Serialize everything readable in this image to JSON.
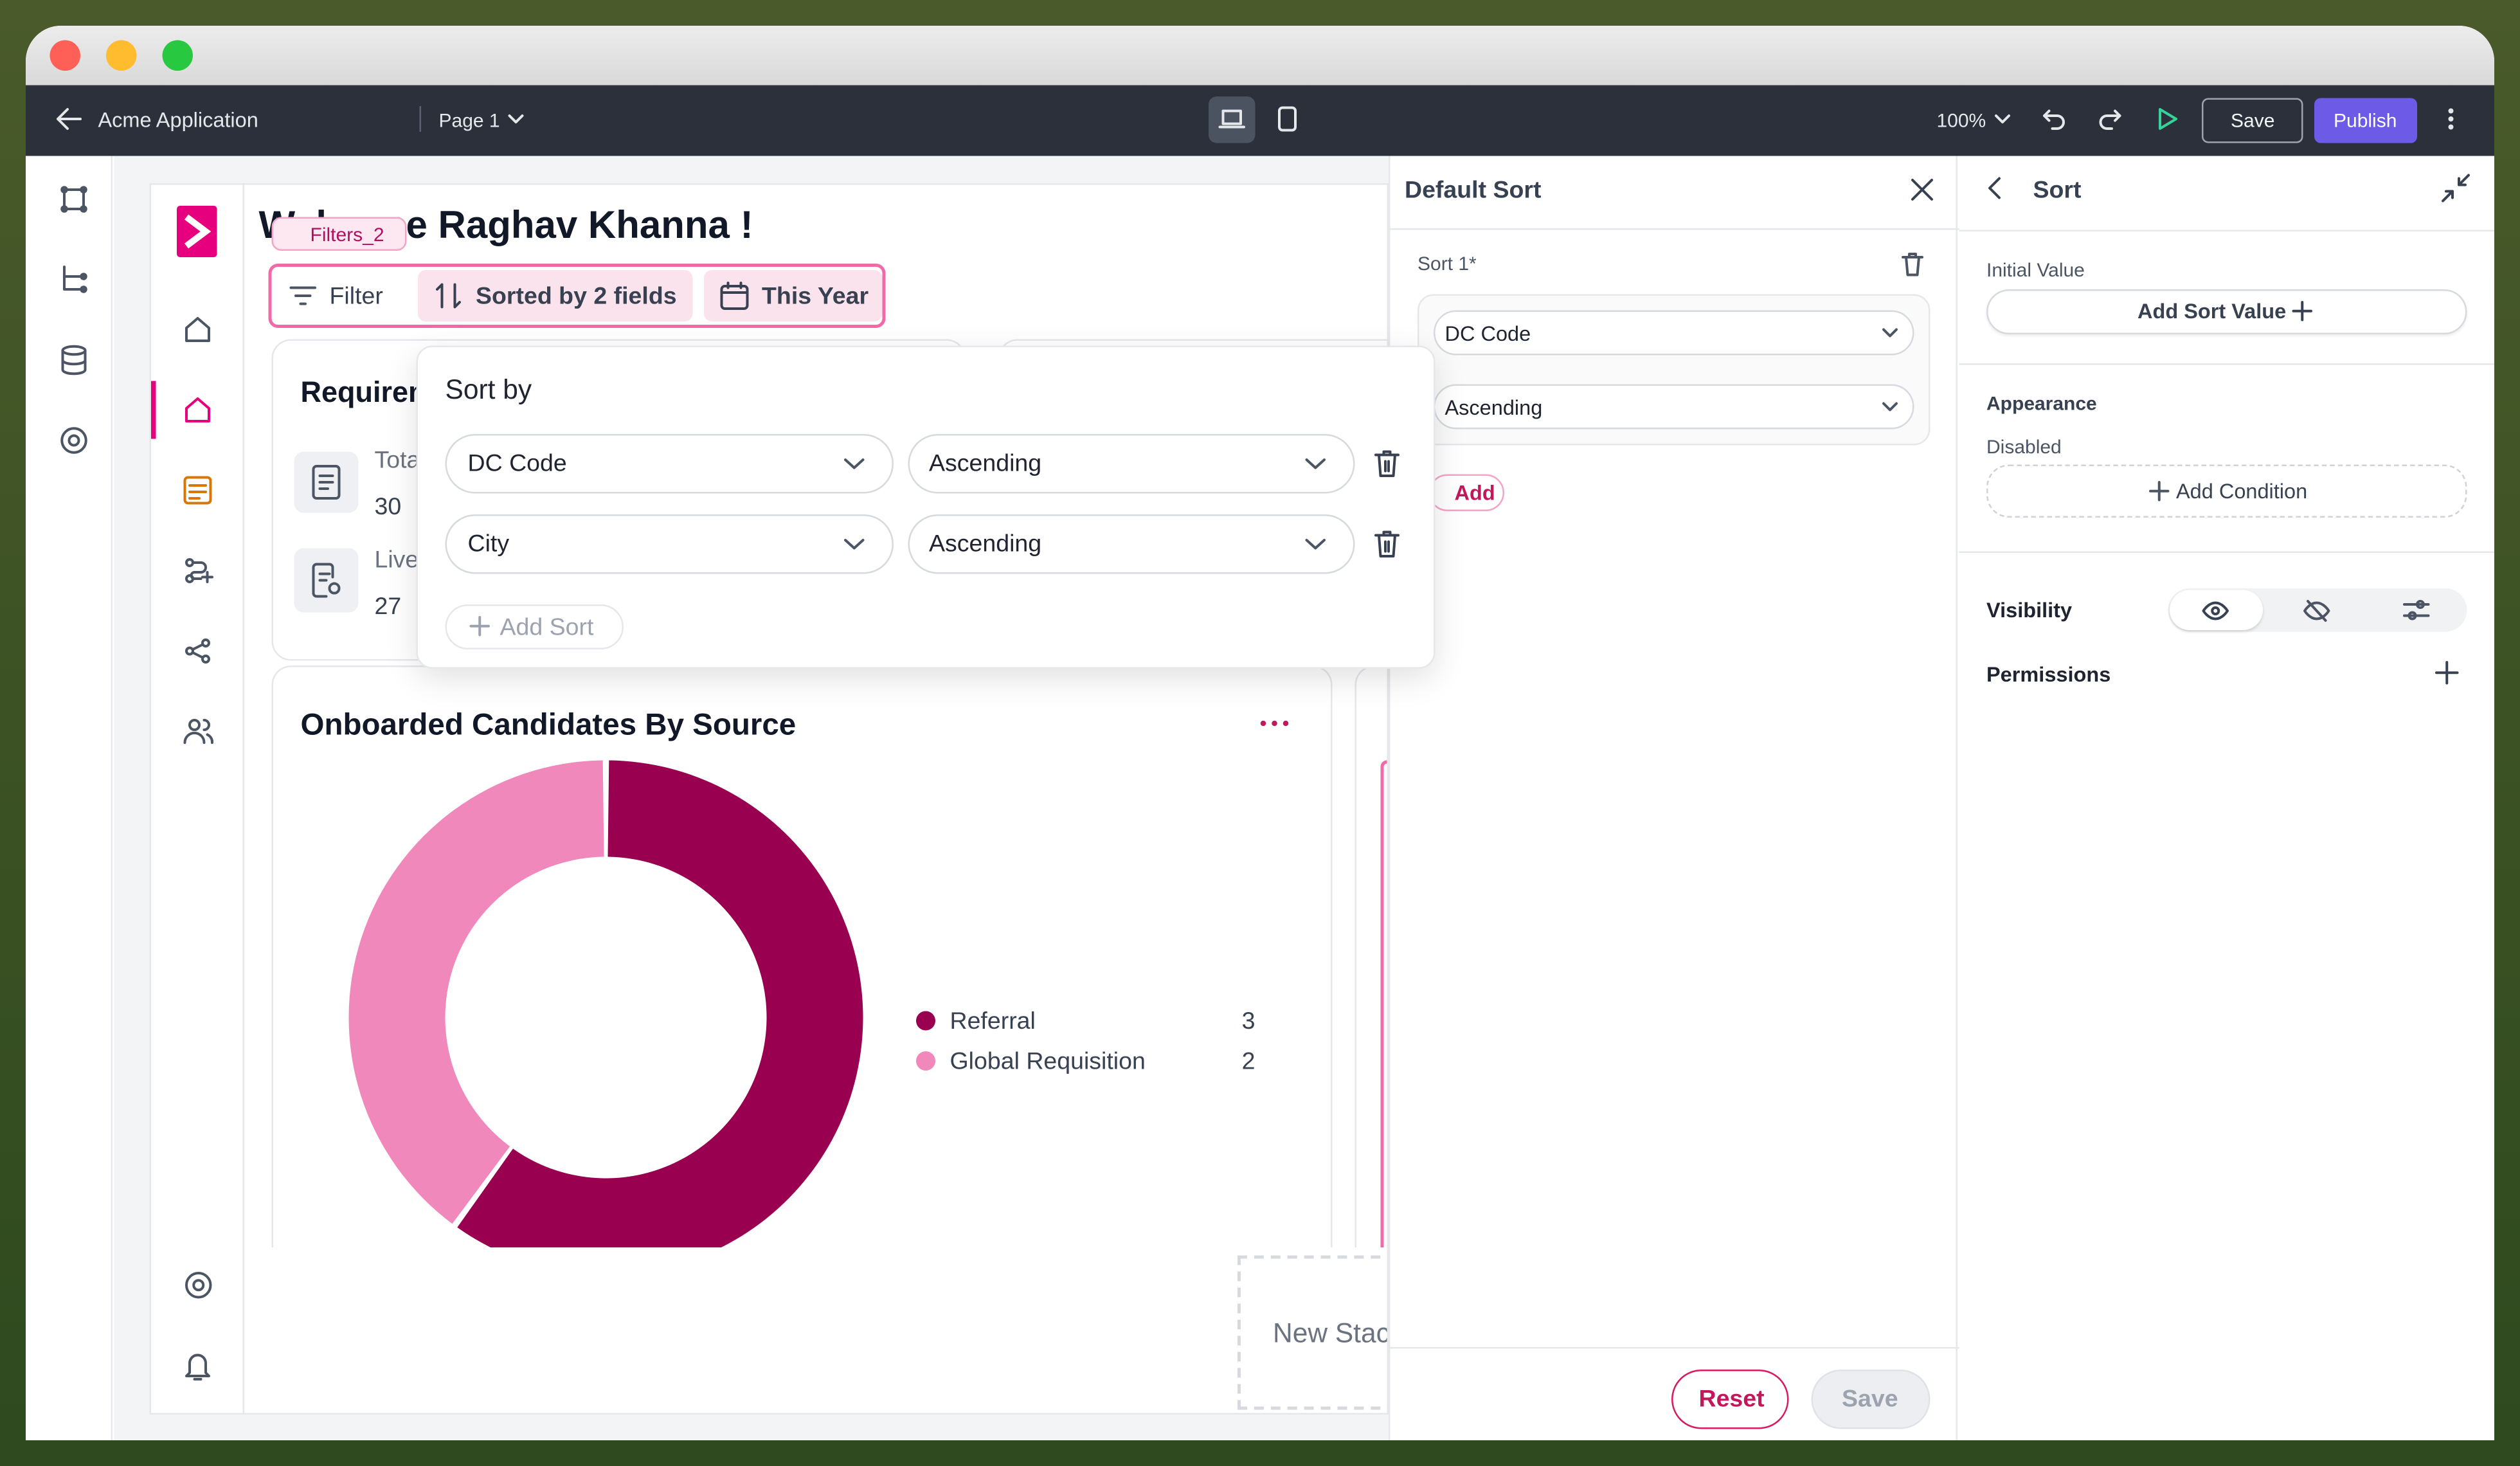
{
  "toolbar": {
    "app_name": "Acme Application",
    "page": "Page 1",
    "zoom": "100%",
    "save": "Save",
    "publish": "Publish"
  },
  "canvas": {
    "welcome": "Welcome Raghav Khanna !",
    "filters_tag": "Filters_2",
    "filter": "Filter",
    "sorted": "Sorted by 2 fields",
    "period": "This Year",
    "stats_card": {
      "title": "Requirements",
      "items": [
        {
          "label": "Total",
          "value": "30"
        },
        {
          "label": "Live",
          "value": "27"
        }
      ]
    },
    "new_stack": "New Stack"
  },
  "sort_popup": {
    "title": "Sort by",
    "rows": [
      {
        "field": "DC Code",
        "order": "Ascending"
      },
      {
        "field": "City",
        "order": "Ascending"
      }
    ],
    "add": "Add Sort"
  },
  "chart_data": {
    "type": "donut",
    "title": "Onboarded Candidates By Source",
    "categories": [
      "Referral",
      "Global Requisition"
    ],
    "values": [
      3,
      2
    ],
    "colors": [
      "#990050",
      "#f088bb"
    ]
  },
  "default_sort_panel": {
    "title": "Default Sort",
    "sort_label": "Sort 1*",
    "field": "DC Code",
    "order": "Ascending",
    "add": "Add",
    "reset": "Reset",
    "save": "Save"
  },
  "properties_panel": {
    "title": "Sort",
    "initial_value": "Initial Value",
    "add_sort_value": "Add Sort Value",
    "appearance": "Appearance",
    "disabled": "Disabled",
    "add_condition": "Add Condition",
    "visibility": "Visibility",
    "permissions": "Permissions"
  }
}
